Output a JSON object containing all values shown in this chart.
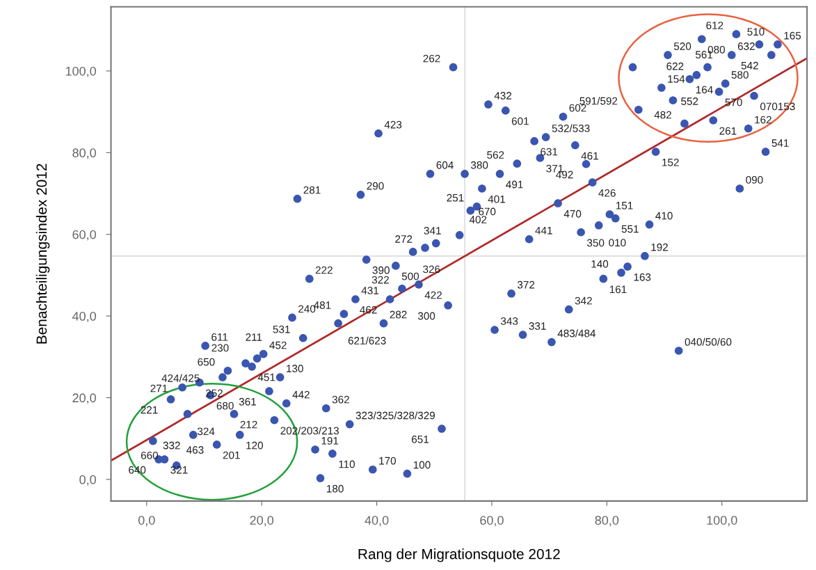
{
  "chart_data": {
    "type": "scatter",
    "xlabel": "Rang der Migrationsquote 2012",
    "ylabel": "Benachteiligungsindex 2012",
    "xlim": [
      -6.2,
      114.8
    ],
    "ylim": [
      -5.3,
      115.7
    ],
    "xticks": [
      {
        "value": 0,
        "label": "0,0"
      },
      {
        "value": 20,
        "label": "20,0"
      },
      {
        "value": 40,
        "label": "40,0"
      },
      {
        "value": 60,
        "label": "60,0"
      },
      {
        "value": 80,
        "label": "80,0"
      },
      {
        "value": 100,
        "label": "100,0"
      }
    ],
    "yticks": [
      {
        "value": 0,
        "label": "0,0"
      },
      {
        "value": 20,
        "label": "20,0"
      },
      {
        "value": 40,
        "label": "40,0"
      },
      {
        "value": 60,
        "label": "60,0"
      },
      {
        "value": 80,
        "label": "80,0"
      },
      {
        "value": 100,
        "label": "100,0"
      }
    ],
    "grid": false,
    "legend": false,
    "marker": "circle",
    "ref_lines": [
      {
        "axis": "x",
        "value": 55.3,
        "color": "#dcdcdc"
      },
      {
        "axis": "y",
        "value": 54.7,
        "color": "#dcdcdc"
      }
    ],
    "series": [
      {
        "color": "#3a56b0",
        "x": [
          28.3,
          25.3,
          27.2,
          10.2,
          14.1,
          17.2,
          18.3,
          19.2,
          20.3,
          23.2,
          13.2,
          9.2,
          6.2,
          4.2,
          11.1,
          21.3,
          24.3,
          22.2,
          15.2,
          16.2,
          7.1,
          8.1,
          12.2,
          1.1,
          2.1,
          3.1,
          5.2,
          29.3,
          32.3,
          30.2,
          31.2,
          35.3,
          39.3,
          45.3,
          51.3,
          34.3,
          33.3,
          41.2,
          38.2,
          43.3,
          48.4,
          46.3,
          50.3,
          54.4,
          44.4,
          47.3,
          42.3,
          36.3,
          52.4,
          53.3,
          59.4,
          62.4,
          40.3,
          69.4,
          67.4,
          68.4,
          49.3,
          55.3,
          61.4,
          64.4,
          58.3,
          57.4,
          56.3,
          26.2,
          37.2,
          66.5,
          63.4,
          72.4,
          74.5,
          76.4,
          77.5,
          71.5,
          80.5,
          81.5,
          87.4,
          75.5,
          78.6,
          86.6,
          79.4,
          82.5,
          83.6,
          73.4,
          60.5,
          65.4,
          70.4,
          92.5,
          103.1,
          107.6,
          104.6,
          88.5,
          105.6,
          93.5,
          98.5,
          94.4,
          91.5,
          85.5,
          89.5,
          95.6,
          99.5,
          100.6,
          101.7,
          97.5,
          90.6,
          84.5,
          108.6,
          109.7,
          106.5,
          102.5,
          96.5
        ],
        "values": [
          49.1,
          39.6,
          34.6,
          32.7,
          26.6,
          28.4,
          27.6,
          29.6,
          30.7,
          25.0,
          25.0,
          23.7,
          22.5,
          19.6,
          20.6,
          21.6,
          18.6,
          14.5,
          16.0,
          10.9,
          16.0,
          10.9,
          8.5,
          9.4,
          4.9,
          4.9,
          3.4,
          7.3,
          6.3,
          0.3,
          17.4,
          13.5,
          2.4,
          1.4,
          12.4,
          40.5,
          38.2,
          38.2,
          53.8,
          52.3,
          56.7,
          55.7,
          57.8,
          59.8,
          46.7,
          47.7,
          44.1,
          44.1,
          42.6,
          100.9,
          91.8,
          90.3,
          84.7,
          83.8,
          82.8,
          78.7,
          74.8,
          74.8,
          74.8,
          77.3,
          71.2,
          66.8,
          65.8,
          68.7,
          69.7,
          58.8,
          45.5,
          88.8,
          81.8,
          77.2,
          72.7,
          67.6,
          64.9,
          63.9,
          62.4,
          60.5,
          62.2,
          54.7,
          49.1,
          50.6,
          52.1,
          41.6,
          36.6,
          35.4,
          33.6,
          31.5,
          71.2,
          80.2,
          85.9,
          80.2,
          93.9,
          87.1,
          87.9,
          98.0,
          92.8,
          90.5,
          95.9,
          99.0,
          94.9,
          96.9,
          103.9,
          100.9,
          103.9,
          100.9,
          103.9,
          106.5,
          106.5,
          109.0,
          107.8
        ]
      },
      {
        "type": "line",
        "marker": "none",
        "color": "#b02a2a",
        "x": [
          -6.2,
          114.8
        ],
        "values": [
          4.6,
          103.1
        ]
      }
    ],
    "annotations": [
      {
        "text": "222",
        "x": 28.3,
        "y": 49.1
      },
      {
        "text": "240",
        "x": 25.3,
        "y": 39.6
      },
      {
        "text": "531",
        "x": 27.2,
        "y": 34.6
      },
      {
        "text": "611",
        "x": 10.2,
        "y": 32.7
      },
      {
        "text": "650",
        "x": 14.1,
        "y": 26.6
      },
      {
        "text": "230",
        "x": 17.2,
        "y": 28.4
      },
      {
        "text": "451",
        "x": 18.3,
        "y": 27.6
      },
      {
        "text": "211",
        "x": 19.2,
        "y": 29.6
      },
      {
        "text": "452",
        "x": 20.3,
        "y": 30.7
      },
      {
        "text": "130",
        "x": 23.2,
        "y": 25.0
      },
      {
        "text": "424/425",
        "x": 13.2,
        "y": 25.0
      },
      {
        "text": "252",
        "x": 9.2,
        "y": 23.7
      },
      {
        "text": "271",
        "x": 6.2,
        "y": 22.5
      },
      {
        "text": "221",
        "x": 4.2,
        "y": 19.6
      },
      {
        "text": "680",
        "x": 11.1,
        "y": 20.6
      },
      {
        "text": "361",
        "x": 21.3,
        "y": 21.6
      },
      {
        "text": "442",
        "x": 24.3,
        "y": 18.6
      },
      {
        "text": "202/203/213",
        "x": 22.2,
        "y": 14.5
      },
      {
        "text": "212",
        "x": 15.2,
        "y": 16.0
      },
      {
        "text": "120",
        "x": 16.2,
        "y": 10.9
      },
      {
        "text": "324",
        "x": 7.1,
        "y": 16.0
      },
      {
        "text": "332",
        "x": 8.1,
        "y": 10.9
      },
      {
        "text": "201",
        "x": 12.2,
        "y": 8.5
      },
      {
        "text": "660",
        "x": 1.1,
        "y": 9.4
      },
      {
        "text": "640",
        "x": 2.1,
        "y": 4.9
      },
      {
        "text": "321",
        "x": 3.1,
        "y": 4.9
      },
      {
        "text": "463",
        "x": 5.2,
        "y": 3.4
      },
      {
        "text": "191",
        "x": 29.3,
        "y": 7.3
      },
      {
        "text": "110",
        "x": 32.3,
        "y": 6.3
      },
      {
        "text": "180",
        "x": 30.2,
        "y": 0.3
      },
      {
        "text": "362",
        "x": 31.2,
        "y": 17.4
      },
      {
        "text": "323/325/328/329",
        "x": 35.3,
        "y": 13.5
      },
      {
        "text": "170",
        "x": 39.3,
        "y": 2.4
      },
      {
        "text": "100",
        "x": 45.3,
        "y": 1.4
      },
      {
        "text": "651",
        "x": 51.3,
        "y": 12.4
      },
      {
        "text": "481",
        "x": 34.3,
        "y": 40.5
      },
      {
        "text": "621/623",
        "x": 33.3,
        "y": 38.2
      },
      {
        "text": "282",
        "x": 41.2,
        "y": 38.2
      },
      {
        "text": "390",
        "x": 38.2,
        "y": 53.8
      },
      {
        "text": "500",
        "x": 43.3,
        "y": 52.3
      },
      {
        "text": "272",
        "x": 48.4,
        "y": 56.7
      },
      {
        "text": "326",
        "x": 46.3,
        "y": 55.7
      },
      {
        "text": "341",
        "x": 50.3,
        "y": 57.8
      },
      {
        "text": "402",
        "x": 54.4,
        "y": 59.8
      },
      {
        "text": "322",
        "x": 44.4,
        "y": 46.7
      },
      {
        "text": "422",
        "x": 47.3,
        "y": 47.7
      },
      {
        "text": "462",
        "x": 42.3,
        "y": 44.1
      },
      {
        "text": "431",
        "x": 36.3,
        "y": 44.1
      },
      {
        "text": "300",
        "x": 52.4,
        "y": 42.6
      },
      {
        "text": "262",
        "x": 53.3,
        "y": 100.9
      },
      {
        "text": "432",
        "x": 59.4,
        "y": 91.8
      },
      {
        "text": "601",
        "x": 62.4,
        "y": 90.3
      },
      {
        "text": "423",
        "x": 40.3,
        "y": 84.7
      },
      {
        "text": "532/533",
        "x": 69.4,
        "y": 83.8
      },
      {
        "text": "631",
        "x": 67.4,
        "y": 82.8
      },
      {
        "text": "371",
        "x": 68.4,
        "y": 78.7
      },
      {
        "text": "604",
        "x": 49.3,
        "y": 74.8
      },
      {
        "text": "380",
        "x": 55.3,
        "y": 74.8
      },
      {
        "text": "491",
        "x": 61.4,
        "y": 74.8
      },
      {
        "text": "562",
        "x": 64.4,
        "y": 77.3
      },
      {
        "text": "401",
        "x": 58.3,
        "y": 71.2
      },
      {
        "text": "251",
        "x": 57.4,
        "y": 66.8
      },
      {
        "text": "670",
        "x": 56.3,
        "y": 65.8
      },
      {
        "text": "281",
        "x": 26.2,
        "y": 68.7
      },
      {
        "text": "290",
        "x": 37.2,
        "y": 69.7
      },
      {
        "text": "441",
        "x": 66.5,
        "y": 58.8
      },
      {
        "text": "372",
        "x": 63.4,
        "y": 45.5
      },
      {
        "text": "602",
        "x": 72.4,
        "y": 88.8
      },
      {
        "text": "461",
        "x": 74.5,
        "y": 81.8
      },
      {
        "text": "492",
        "x": 76.4,
        "y": 77.2
      },
      {
        "text": "426",
        "x": 77.5,
        "y": 72.7
      },
      {
        "text": "470",
        "x": 71.5,
        "y": 67.6
      },
      {
        "text": "151",
        "x": 80.5,
        "y": 64.9
      },
      {
        "text": "551",
        "x": 81.5,
        "y": 63.9
      },
      {
        "text": "410",
        "x": 87.4,
        "y": 62.4
      },
      {
        "text": "350",
        "x": 75.5,
        "y": 60.5
      },
      {
        "text": "010",
        "x": 78.6,
        "y": 62.2
      },
      {
        "text": "192",
        "x": 86.6,
        "y": 54.7
      },
      {
        "text": "161",
        "x": 79.4,
        "y": 49.1
      },
      {
        "text": "140",
        "x": 82.5,
        "y": 50.6
      },
      {
        "text": "163",
        "x": 83.6,
        "y": 52.1
      },
      {
        "text": "342",
        "x": 73.4,
        "y": 41.6
      },
      {
        "text": "343",
        "x": 60.5,
        "y": 36.6
      },
      {
        "text": "331",
        "x": 65.4,
        "y": 35.4
      },
      {
        "text": "483/484",
        "x": 70.4,
        "y": 33.6
      },
      {
        "text": "040/50/60",
        "x": 92.5,
        "y": 31.5
      },
      {
        "text": "090",
        "x": 103.1,
        "y": 71.2
      },
      {
        "text": "541",
        "x": 107.6,
        "y": 80.2
      },
      {
        "text": "162",
        "x": 104.6,
        "y": 85.9
      },
      {
        "text": "152",
        "x": 88.5,
        "y": 80.2
      },
      {
        "text": "070153",
        "x": 105.6,
        "y": 93.9
      },
      {
        "text": "482",
        "x": 93.5,
        "y": 87.1
      },
      {
        "text": "261",
        "x": 98.5,
        "y": 87.9
      },
      {
        "text": "164",
        "x": 94.4,
        "y": 98.0
      },
      {
        "text": "552",
        "x": 91.5,
        "y": 92.8
      },
      {
        "text": "591/592",
        "x": 85.5,
        "y": 90.5
      },
      {
        "text": "154",
        "x": 89.5,
        "y": 95.9
      },
      {
        "text": "622",
        "x": 95.6,
        "y": 99.0
      },
      {
        "text": "570",
        "x": 99.5,
        "y": 94.9
      },
      {
        "text": "580",
        "x": 100.6,
        "y": 96.9
      },
      {
        "text": "632",
        "x": 101.7,
        "y": 103.9
      },
      {
        "text": "561",
        "x": 97.5,
        "y": 100.9
      },
      {
        "text": "520",
        "x": 90.6,
        "y": 103.9
      },
      {
        "text": "542",
        "x": 108.6,
        "y": 103.9
      },
      {
        "text": "165",
        "x": 109.7,
        "y": 106.5
      },
      {
        "text": "510",
        "x": 106.5,
        "y": 106.5
      },
      {
        "text": "612",
        "x": 102.5,
        "y": 109.0
      },
      {
        "text": "080",
        "x": 96.5,
        "y": 107.8
      }
    ]
  }
}
